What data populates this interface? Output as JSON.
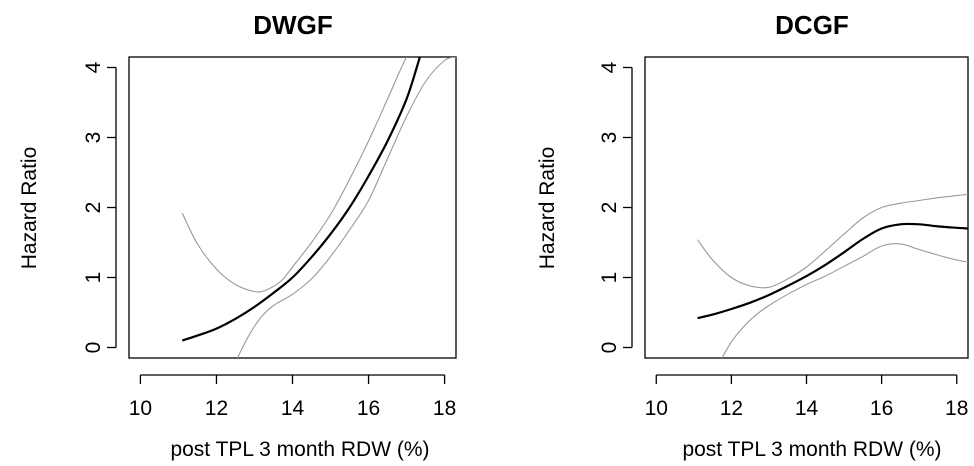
{
  "chart_data": [
    {
      "type": "line",
      "title": "DWGF",
      "xlabel": "post TPL 3 month RDW (%)",
      "ylabel": "Hazard Ratio",
      "xlim": [
        9.7,
        18.3
      ],
      "ylim": [
        -0.15,
        4.15
      ],
      "xticks": [
        "10",
        "12",
        "14",
        "16",
        "18"
      ],
      "yticks": [
        "0",
        "1",
        "2",
        "3",
        "4"
      ],
      "grid": false,
      "series": [
        {
          "role": "estimate",
          "color": "#000000",
          "x": [
            11.1,
            11.5,
            12.0,
            12.5,
            13.0,
            13.5,
            14.0,
            14.5,
            15.0,
            15.5,
            16.0,
            16.5,
            17.0,
            17.35
          ],
          "y": [
            0.1,
            0.17,
            0.27,
            0.41,
            0.58,
            0.78,
            1.0,
            1.29,
            1.62,
            2.0,
            2.45,
            2.95,
            3.55,
            4.15
          ]
        },
        {
          "role": "upper",
          "color": "#999999",
          "x": [
            11.1,
            11.5,
            12.0,
            12.5,
            13.0,
            13.3,
            13.7,
            14.0,
            14.5,
            15.0,
            15.5,
            16.0,
            16.5,
            17.0,
            17.15
          ],
          "y": [
            1.92,
            1.48,
            1.12,
            0.9,
            0.8,
            0.82,
            0.95,
            1.15,
            1.5,
            1.9,
            2.4,
            2.95,
            3.55,
            4.15,
            4.15
          ]
        },
        {
          "role": "lower",
          "color": "#999999",
          "x": [
            12.55,
            12.8,
            13.0,
            13.2,
            13.5,
            14.0,
            14.5,
            15.0,
            15.5,
            16.0,
            16.5,
            17.0,
            17.5,
            18.0,
            18.3
          ],
          "y": [
            -0.15,
            0.12,
            0.3,
            0.45,
            0.6,
            0.76,
            0.98,
            1.3,
            1.68,
            2.1,
            2.7,
            3.3,
            3.8,
            4.1,
            4.15
          ]
        }
      ]
    },
    {
      "type": "line",
      "title": "DCGF",
      "xlabel": "post TPL 3 month RDW (%)",
      "ylabel": "Hazard Ratio",
      "xlim": [
        9.7,
        18.3
      ],
      "ylim": [
        -0.15,
        4.15
      ],
      "xticks": [
        "10",
        "12",
        "14",
        "16",
        "18"
      ],
      "yticks": [
        "0",
        "1",
        "2",
        "3",
        "4"
      ],
      "grid": false,
      "series": [
        {
          "role": "estimate",
          "color": "#000000",
          "x": [
            11.1,
            11.5,
            12.0,
            12.5,
            13.0,
            13.5,
            14.0,
            14.5,
            15.0,
            15.5,
            16.0,
            16.5,
            17.0,
            17.5,
            18.0,
            18.3
          ],
          "y": [
            0.42,
            0.47,
            0.55,
            0.64,
            0.75,
            0.88,
            1.02,
            1.18,
            1.36,
            1.55,
            1.7,
            1.76,
            1.76,
            1.73,
            1.71,
            1.7
          ]
        },
        {
          "role": "upper",
          "color": "#999999",
          "x": [
            11.1,
            11.5,
            12.0,
            12.5,
            13.0,
            13.5,
            14.0,
            14.5,
            15.0,
            15.5,
            16.0,
            16.5,
            17.0,
            17.5,
            18.0,
            18.3
          ],
          "y": [
            1.54,
            1.25,
            1.0,
            0.88,
            0.86,
            0.98,
            1.15,
            1.38,
            1.62,
            1.85,
            2.0,
            2.06,
            2.1,
            2.14,
            2.17,
            2.19
          ]
        },
        {
          "role": "lower",
          "color": "#999999",
          "x": [
            11.75,
            12.0,
            12.3,
            12.6,
            13.0,
            13.5,
            14.0,
            14.5,
            15.0,
            15.5,
            16.0,
            16.5,
            17.0,
            17.5,
            18.0,
            18.3
          ],
          "y": [
            -0.15,
            0.08,
            0.28,
            0.44,
            0.6,
            0.76,
            0.9,
            1.02,
            1.16,
            1.3,
            1.45,
            1.48,
            1.4,
            1.32,
            1.25,
            1.22
          ]
        }
      ]
    }
  ]
}
